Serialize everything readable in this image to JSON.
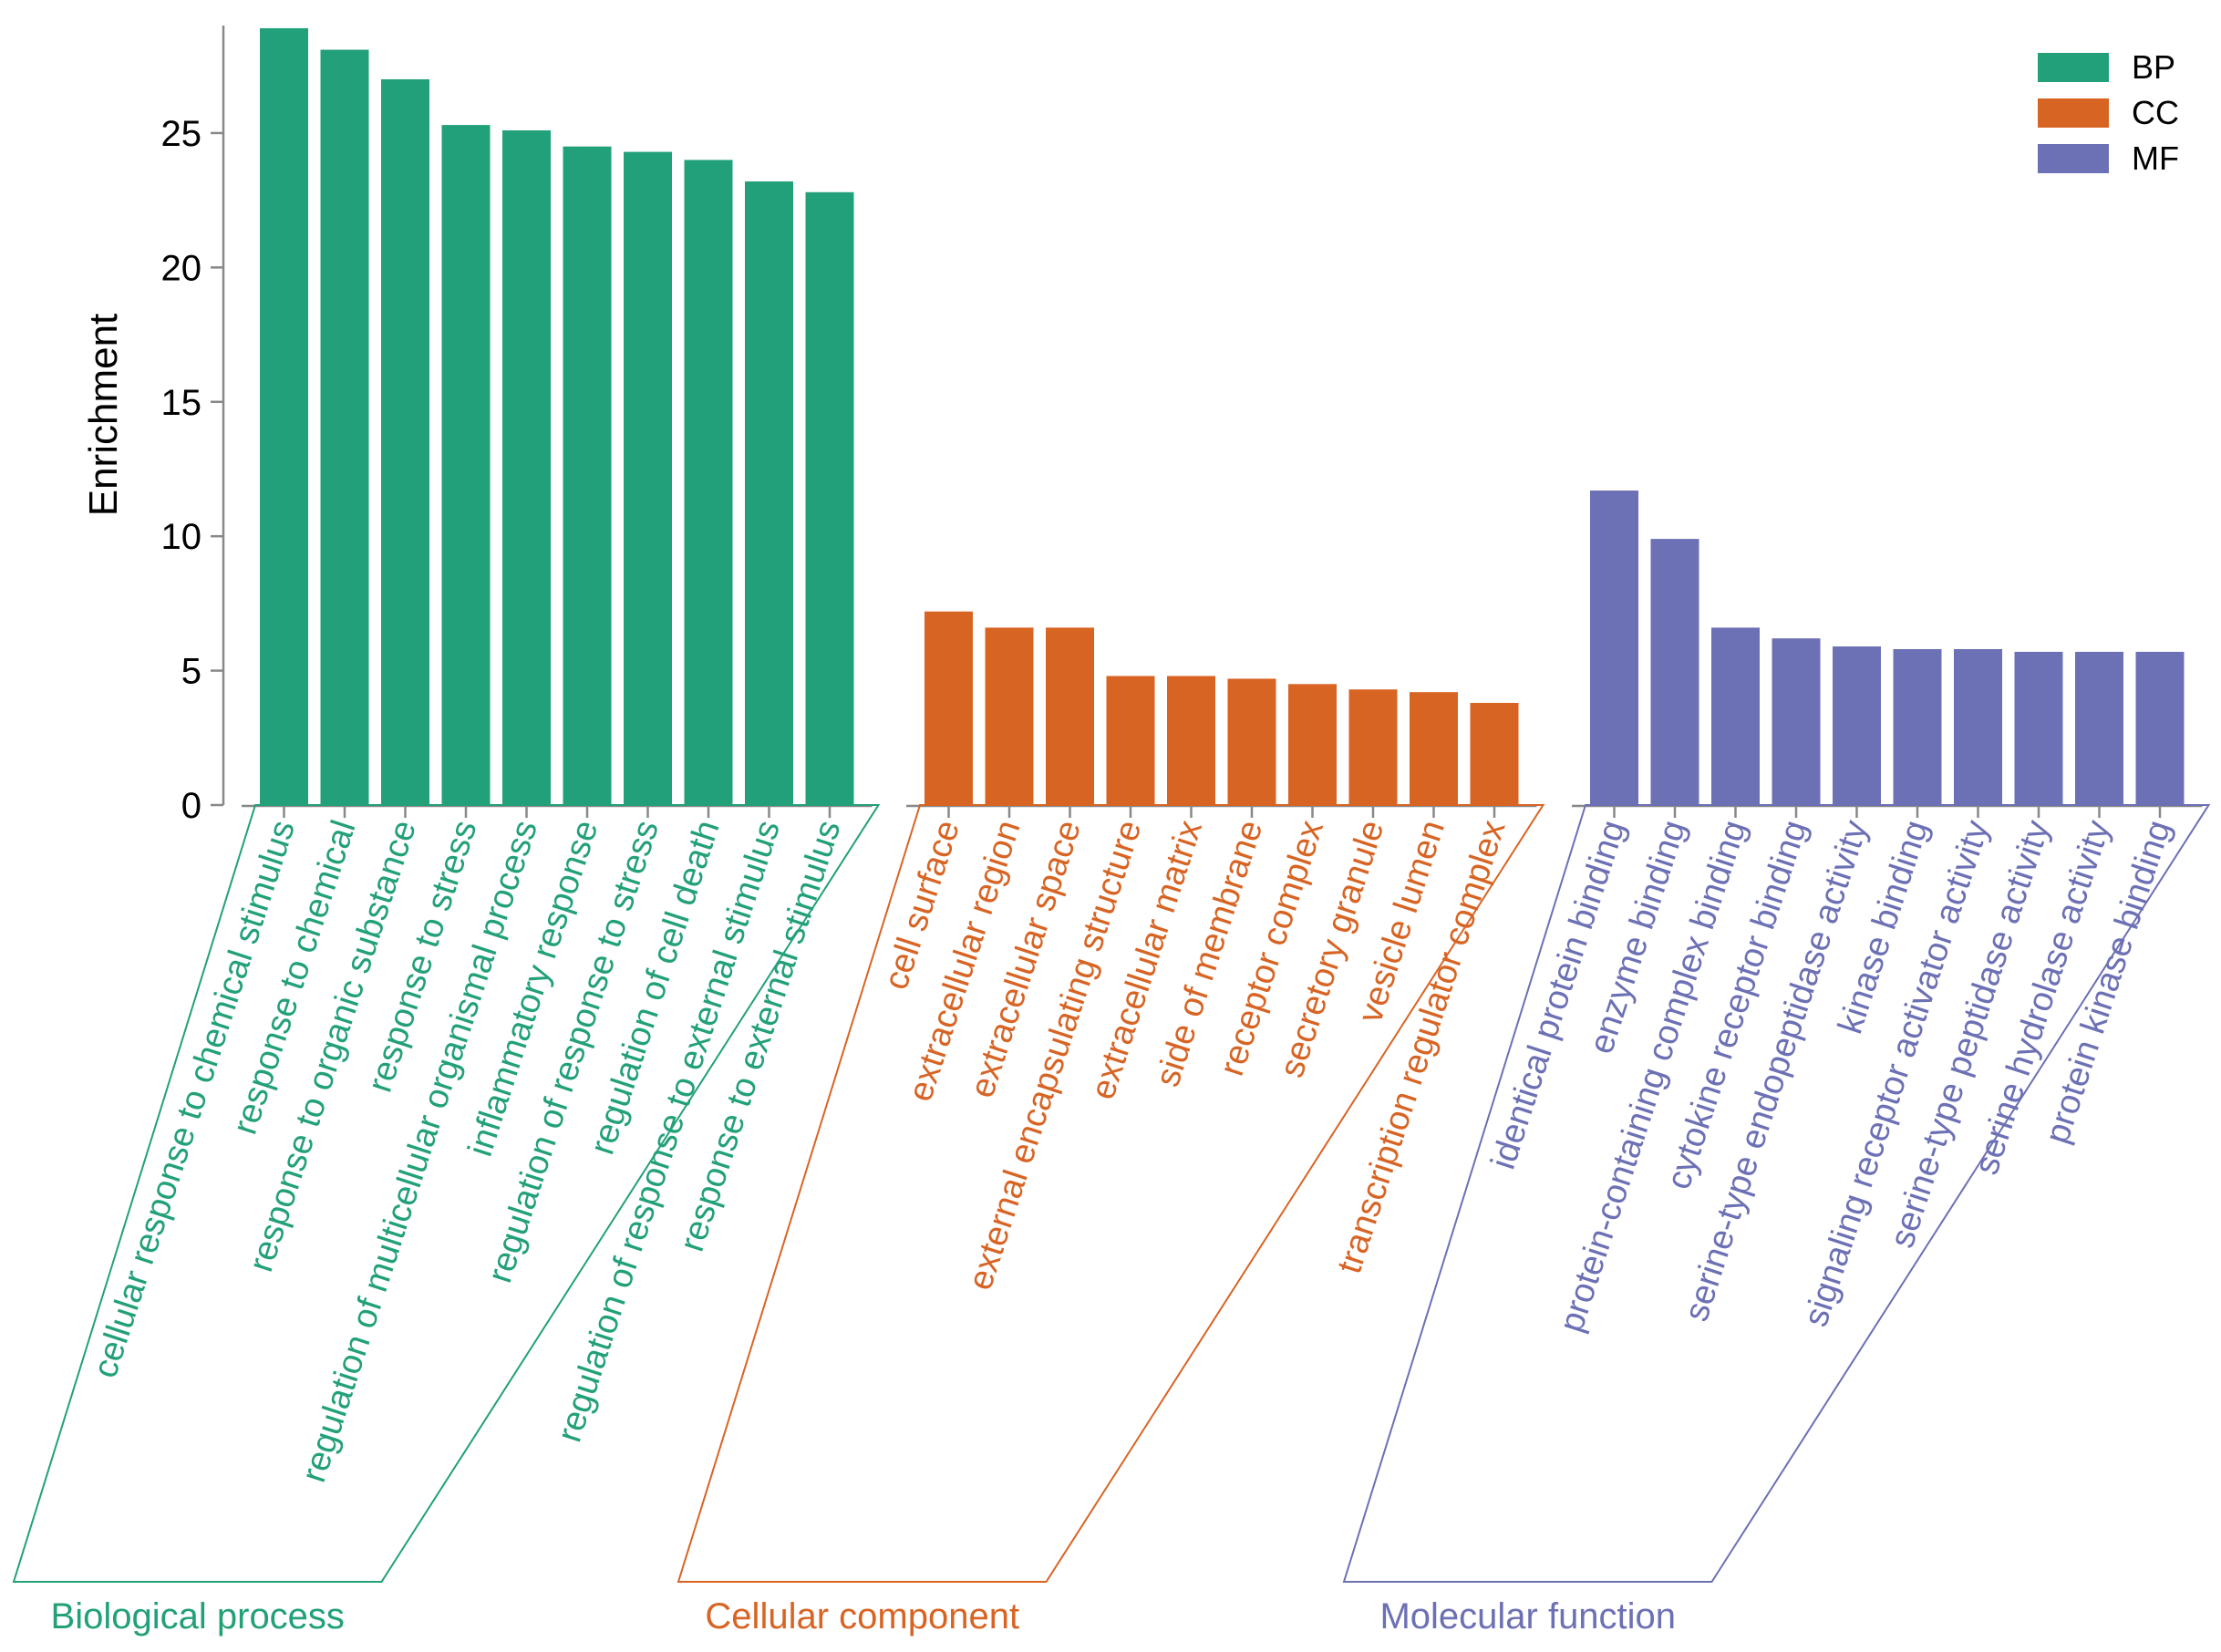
{
  "chart_data": {
    "type": "bar",
    "title": "",
    "xlabel": "",
    "ylabel": "Enrichment",
    "ylim": [
      0,
      29
    ],
    "yticks": [
      0,
      5,
      10,
      15,
      20,
      25
    ],
    "grid": false,
    "legend_position": "top-right",
    "series": [
      {
        "name": "BP",
        "group_label": "Biological process",
        "color": "#22a079",
        "categories": [
          "cellular response to chemical stimulus",
          "response to chemical",
          "response to organic substance",
          "response to stress",
          "regulation of multicellular organismal process",
          "inflammatory response",
          "regulation of response to stress",
          "regulation of cell death",
          "regulation of response to external stimulus",
          "response to external stimulus"
        ],
        "values": [
          28.9,
          28.1,
          27.0,
          25.3,
          25.1,
          24.5,
          24.3,
          24.0,
          23.2,
          22.8
        ]
      },
      {
        "name": "CC",
        "group_label": "Cellular component",
        "color": "#d86424",
        "categories": [
          "cell surface",
          "extracellular region",
          "extracellular space",
          "external encapsulating structure",
          "extracellular matrix",
          "side of membrane",
          "receptor complex",
          "secretory granule",
          "vesicle lumen",
          "transcription regulator complex"
        ],
        "values": [
          7.2,
          6.6,
          6.6,
          4.8,
          4.8,
          4.7,
          4.5,
          4.3,
          4.2,
          3.8
        ]
      },
      {
        "name": "MF",
        "group_label": "Molecular function",
        "color": "#6c70b4",
        "categories": [
          "identical protein binding",
          "enzyme binding",
          "protein-containing complex binding",
          "cytokine receptor binding",
          "serine-type endopeptidase activity",
          "kinase binding",
          "signaling receptor activator activity",
          "serine-type peptidase activity",
          "serine hydrolase activity",
          "protein kinase binding"
        ],
        "values": [
          11.7,
          9.9,
          6.6,
          6.2,
          5.9,
          5.8,
          5.8,
          5.7,
          5.7,
          5.7
        ]
      }
    ]
  }
}
